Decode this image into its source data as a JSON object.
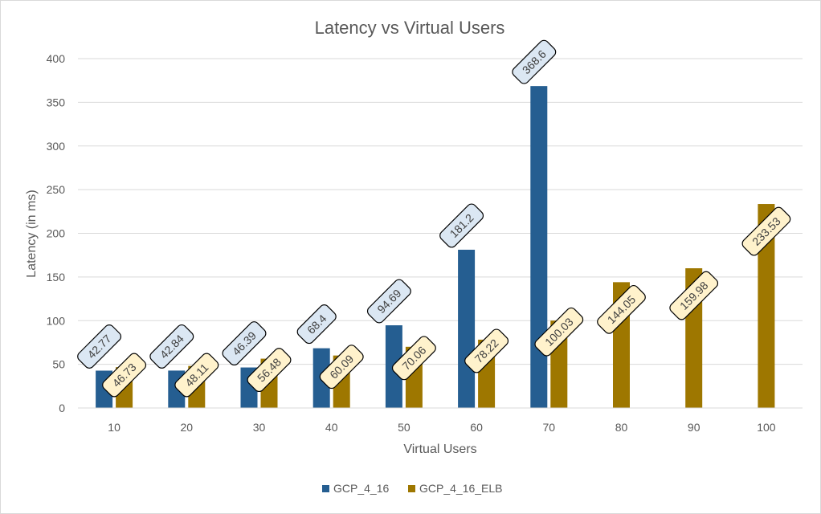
{
  "chart_data": {
    "type": "bar",
    "title": "Latency vs Virtual Users",
    "xlabel": "Virtual Users",
    "ylabel": "Latency (in ms)",
    "ylim": [
      0,
      400
    ],
    "yticks": [
      0,
      50,
      100,
      150,
      200,
      250,
      300,
      350,
      400
    ],
    "categories": [
      "10",
      "20",
      "30",
      "40",
      "50",
      "60",
      "70",
      "80",
      "90",
      "100"
    ],
    "grid": true,
    "legend_position": "bottom",
    "series": [
      {
        "name": "GCP_4_16",
        "color": "#255e91",
        "label_fill": "#dbe7f3",
        "values": [
          42.77,
          42.84,
          46.39,
          68.4,
          94.69,
          181.2,
          368.6,
          null,
          null,
          null
        ],
        "labels": [
          "42.77",
          "42.84",
          "46.39",
          "68.4",
          "94.69",
          "181.2",
          "368.6",
          null,
          null,
          null
        ]
      },
      {
        "name": "GCP_4_16_ELB",
        "color": "#9e7700",
        "label_fill": "#fff2cc",
        "values": [
          46.73,
          48.11,
          56.48,
          60.09,
          70.06,
          78.22,
          100.03,
          144.05,
          159.98,
          233.53
        ],
        "labels": [
          "46.73",
          "48.11",
          "56.48",
          "60.09",
          "70.06",
          "78.22",
          "100.03",
          "144.05",
          "159.98",
          "233.53"
        ]
      }
    ]
  }
}
